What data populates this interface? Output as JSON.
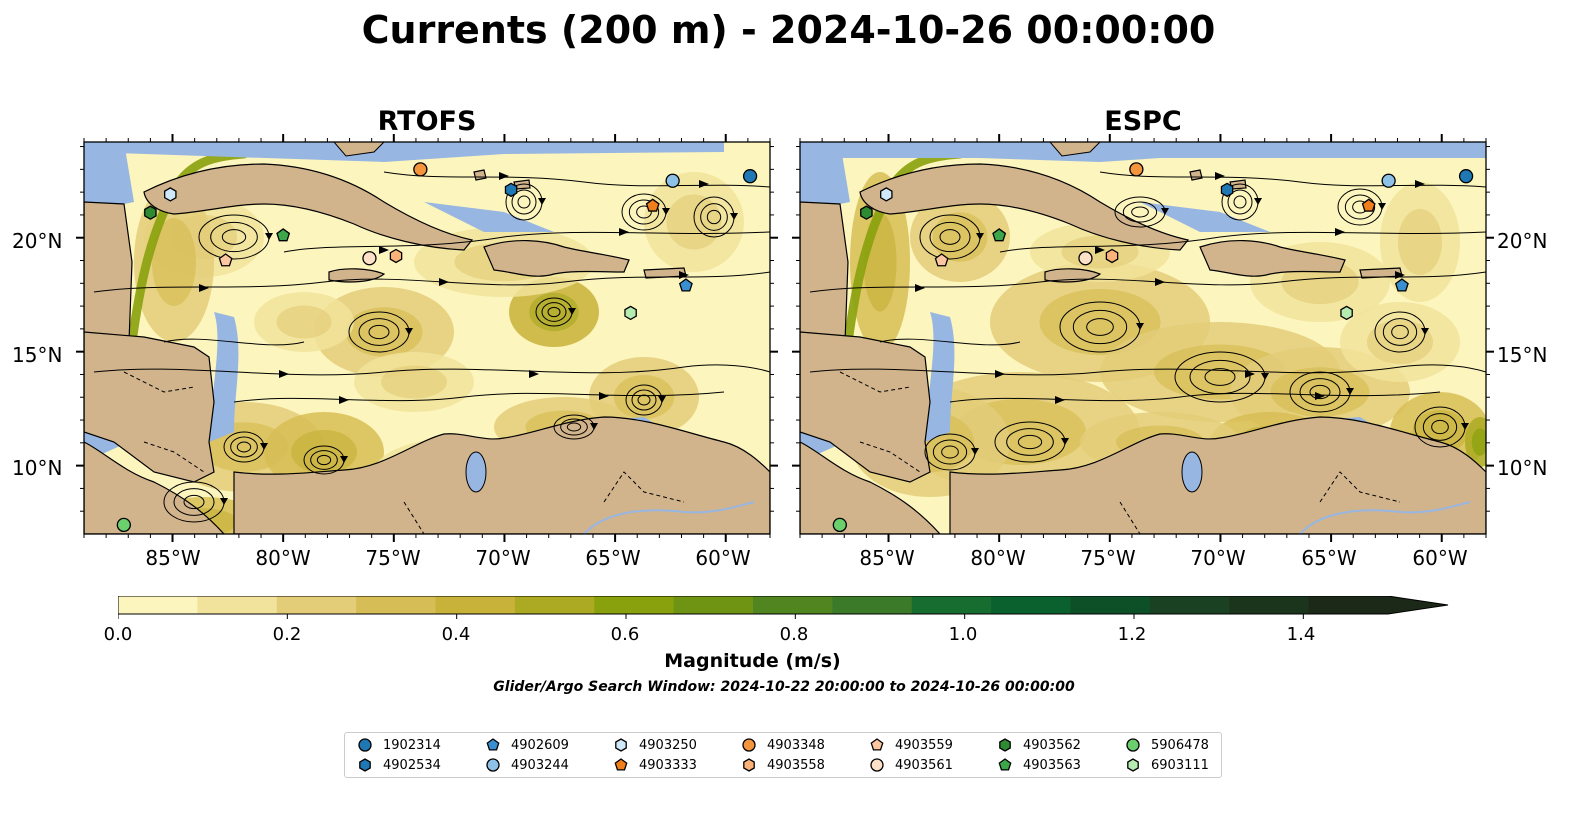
{
  "title": "Currents (200 m) - 2024-10-26 00:00:00",
  "panels": [
    {
      "name": "RTOFS"
    },
    {
      "name": "ESPC"
    }
  ],
  "axes": {
    "lat_ticks": [
      "20°N",
      "15°N",
      "10°N"
    ],
    "lon_ticks": [
      "85°W",
      "80°W",
      "75°W",
      "70°W",
      "65°W",
      "60°W"
    ]
  },
  "colorbar": {
    "label": "Magnitude (m/s)",
    "ticks": [
      "0.0",
      "0.2",
      "0.4",
      "0.6",
      "0.8",
      "1.0",
      "1.2",
      "1.4"
    ],
    "range": [
      0.0,
      1.5
    ],
    "extend": "max",
    "colors": [
      "#fdf5be",
      "#f1e39b",
      "#e3cd79",
      "#d7bd55",
      "#c8b23a",
      "#acaa22",
      "#89a10d",
      "#6f9313",
      "#518520",
      "#3a7a28",
      "#176d2f",
      "#0b612e",
      "#0d5028",
      "#1a4222",
      "#1a351c",
      "#1c2818"
    ]
  },
  "colors": {
    "land": "#d2b48c",
    "shallow_water": "#97b6e1",
    "low_speed": "#fdf5be"
  },
  "search_window": "Glider/Argo Search Window: 2024-10-22 20:00:00 to 2024-10-26 00:00:00",
  "legend": [
    {
      "id": "1902314",
      "marker": "circle",
      "color": "#1f77b4"
    },
    {
      "id": "4902534",
      "marker": "hexagon",
      "color": "#1f77b4"
    },
    {
      "id": "4902609",
      "marker": "pentagon",
      "color": "#3a8fd0"
    },
    {
      "id": "4903244",
      "marker": "circle",
      "color": "#8ec1e8"
    },
    {
      "id": "4903250",
      "marker": "hexagon",
      "color": "#cfe8fa"
    },
    {
      "id": "4903333",
      "marker": "pentagon",
      "color": "#f07e1b"
    },
    {
      "id": "4903348",
      "marker": "circle",
      "color": "#f4953e"
    },
    {
      "id": "4903558",
      "marker": "hexagon",
      "color": "#fbb37a"
    },
    {
      "id": "4903559",
      "marker": "pentagon",
      "color": "#fcc7a0"
    },
    {
      "id": "4903561",
      "marker": "circle",
      "color": "#fde0c8"
    },
    {
      "id": "4903562",
      "marker": "hexagon",
      "color": "#2e8b32"
    },
    {
      "id": "4903563",
      "marker": "pentagon",
      "color": "#3ba64a"
    },
    {
      "id": "5906478",
      "marker": "circle",
      "color": "#6ccf6e"
    },
    {
      "id": "6903111",
      "marker": "hexagon",
      "color": "#b5ecb0"
    }
  ],
  "floats": [
    {
      "id": "1902314",
      "lon": -58.9,
      "lat": 22.7
    },
    {
      "id": "4902534",
      "lon": -69.7,
      "lat": 22.1
    },
    {
      "id": "4902609",
      "lon": -61.8,
      "lat": 17.9
    },
    {
      "id": "4903244",
      "lon": -62.4,
      "lat": 22.5
    },
    {
      "id": "4903250",
      "lon": -85.1,
      "lat": 21.9
    },
    {
      "id": "4903333",
      "lon": -63.3,
      "lat": 21.4
    },
    {
      "id": "4903348",
      "lon": -73.8,
      "lat": 23.0
    },
    {
      "id": "4903558",
      "lon": -74.9,
      "lat": 19.2
    },
    {
      "id": "4903559",
      "lon": -82.6,
      "lat": 19.0
    },
    {
      "id": "4903561",
      "lon": -76.1,
      "lat": 19.1
    },
    {
      "id": "4903562",
      "lon": -86.0,
      "lat": 21.1
    },
    {
      "id": "4903563",
      "lon": -80.0,
      "lat": 20.1
    },
    {
      "id": "5906478",
      "lon": -87.2,
      "lat": 7.4
    },
    {
      "id": "6903111",
      "lon": -64.3,
      "lat": 16.7
    }
  ]
}
